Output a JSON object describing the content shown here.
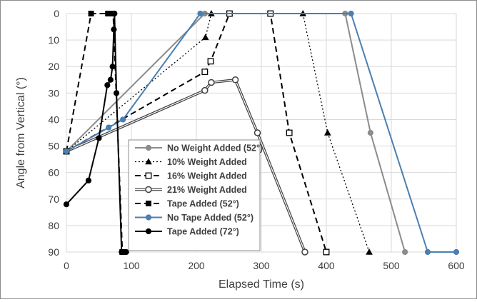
{
  "chart_data": {
    "type": "line",
    "title": "",
    "xlabel": "Elapsed Time (s)",
    "ylabel": "Angle from Vertical (°)",
    "xlim": [
      0,
      600
    ],
    "ylim": [
      0,
      90
    ],
    "y_axis_inverted": true,
    "grid": true,
    "legend_position": "bottom-center",
    "x_ticks": [
      "0",
      "100",
      "200",
      "300",
      "400",
      "500",
      "600"
    ],
    "y_ticks": [
      "0",
      "10",
      "20",
      "30",
      "40",
      "50",
      "60",
      "70",
      "80",
      "90"
    ],
    "series": [
      {
        "name": "No Weight Added (52°)",
        "color": "#8c8c8c",
        "dash": "solid",
        "marker": "circle-filled",
        "points": [
          [
            0,
            52
          ],
          [
            213,
            0
          ],
          [
            429,
            0
          ],
          [
            468,
            45
          ],
          [
            521,
            90
          ]
        ]
      },
      {
        "name": "10% Weight Added",
        "color": "#000000",
        "dash": "dotted",
        "marker": "triangle-filled",
        "points": [
          [
            0,
            52
          ],
          [
            214,
            9
          ],
          [
            223,
            0
          ],
          [
            364,
            0
          ],
          [
            402,
            45
          ],
          [
            466,
            90
          ]
        ]
      },
      {
        "name": "16% Weight Added",
        "color": "#000000",
        "dash": "dashed",
        "marker": "square-open",
        "points": [
          [
            0,
            52
          ],
          [
            213,
            22
          ],
          [
            222,
            18
          ],
          [
            251,
            0
          ],
          [
            314,
            0
          ],
          [
            343,
            45
          ],
          [
            400,
            90
          ]
        ]
      },
      {
        "name": "21% Weight Added",
        "color": "#404040",
        "dash": "double",
        "marker": "circle-open",
        "points": [
          [
            0,
            52
          ],
          [
            213,
            29
          ],
          [
            223,
            26
          ],
          [
            260,
            25
          ],
          [
            294,
            45
          ],
          [
            367,
            90
          ]
        ]
      },
      {
        "name": "Tape Added (52°)",
        "color": "#000000",
        "dash": "dashed",
        "marker": "square-filled",
        "points": [
          [
            0,
            52
          ],
          [
            38,
            0
          ],
          [
            64,
            0
          ],
          [
            68,
            0
          ],
          [
            72,
            0
          ],
          [
            86,
            90
          ],
          [
            89,
            90
          ]
        ]
      },
      {
        "name": "No Tape Added (52°)",
        "color": "#4a7fb0",
        "dash": "solid",
        "marker": "circle-filled",
        "points": [
          [
            0,
            52
          ],
          [
            65,
            43
          ],
          [
            87,
            40
          ],
          [
            206,
            0
          ],
          [
            438,
            0
          ],
          [
            556,
            90
          ],
          [
            600,
            90
          ]
        ]
      },
      {
        "name": "Tape Added (72°)",
        "color": "#000000",
        "dash": "solid",
        "marker": "circle-filled",
        "points": [
          [
            0,
            72
          ],
          [
            34,
            63
          ],
          [
            50,
            47
          ],
          [
            63,
            27
          ],
          [
            68,
            25
          ],
          [
            71,
            20
          ],
          [
            73,
            6
          ],
          [
            74,
            0
          ],
          [
            77,
            30
          ],
          [
            85,
            90
          ],
          [
            88,
            90
          ],
          [
            92,
            90
          ]
        ]
      }
    ]
  }
}
